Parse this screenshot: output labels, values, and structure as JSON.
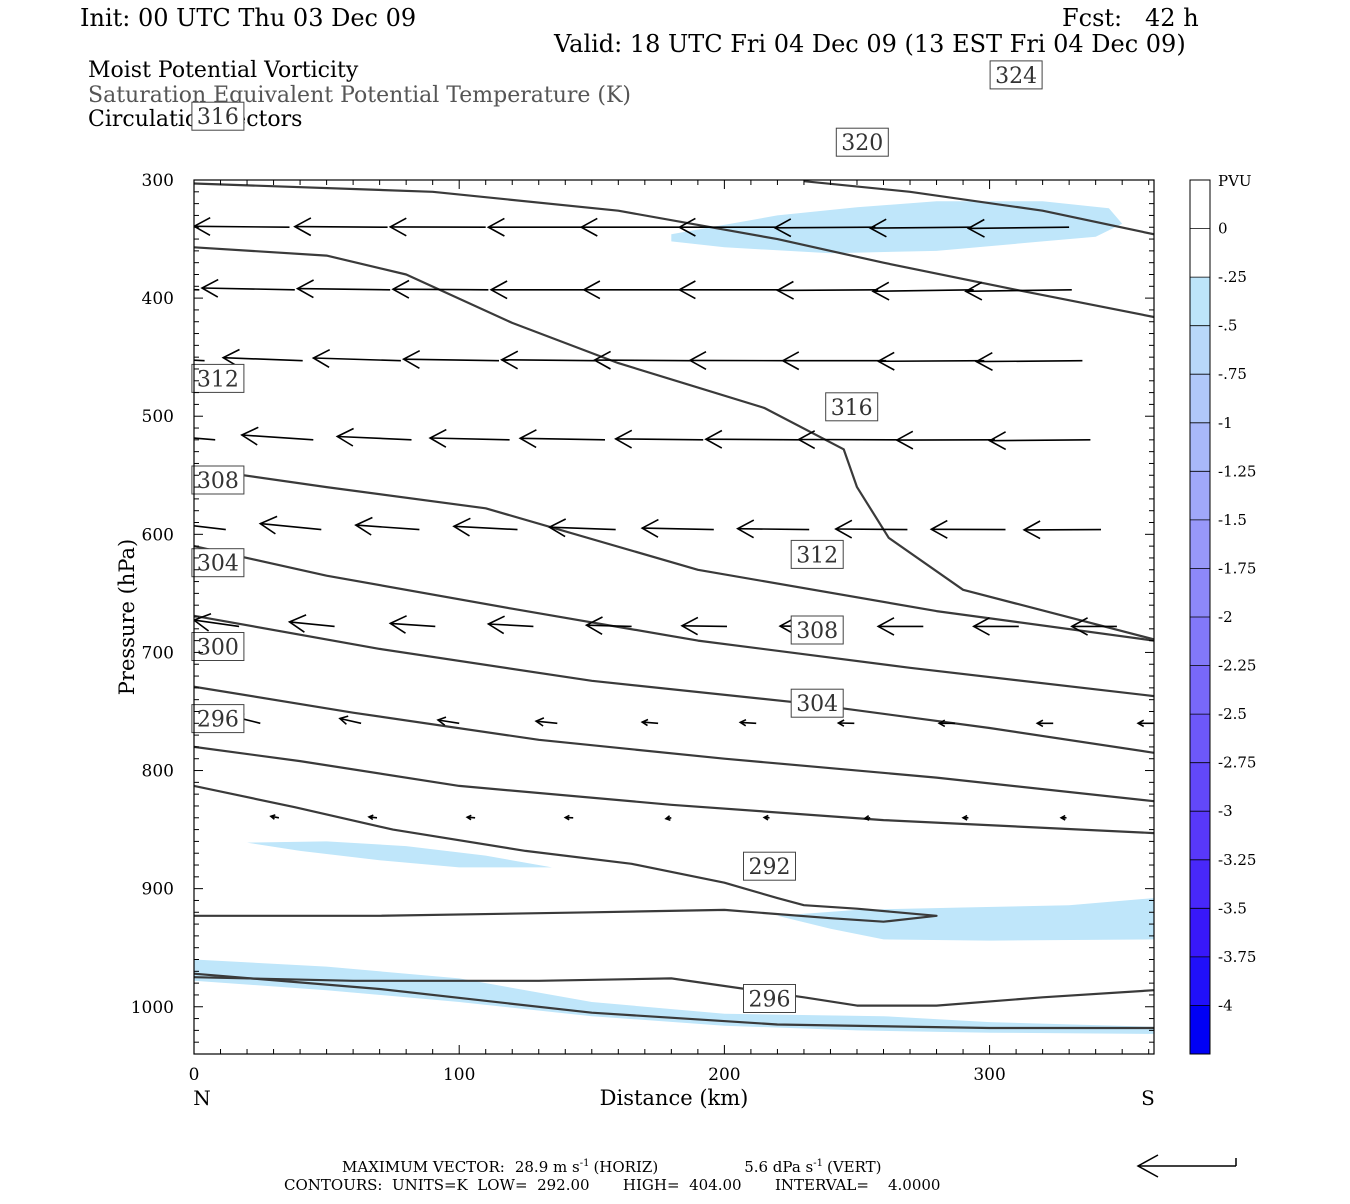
{
  "header": {
    "init": "Init: 00 UTC Thu 03 Dec 09",
    "fcst": "Fcst:   42 h",
    "valid": "Valid: 18 UTC Fri 04 Dec 09 (13 EST Fri 04 Dec 09)",
    "field_lines": [
      "Moist Potential Vorticity",
      "Saturation Equivalent Potential Temperature (K)",
      "Circulation Vectors"
    ]
  },
  "footer": {
    "max_vector_prefix": "MAXIMUM VECTOR:",
    "max_vector_horiz_value": "28.9 m s",
    "max_vector_horiz_label": "(HORIZ)",
    "max_vector_vert_value": "5.6 dPa s",
    "max_vector_vert_label": "(VERT)",
    "exponent": "-1",
    "contours": "CONTOURS:  UNITS=K  LOW=  292.00       HIGH=  404.00       INTERVAL=    4.0000"
  },
  "colors": {
    "contour": "#3a3a3a",
    "shade_light": "#bfe6fa",
    "vector": "#000000"
  },
  "chart_data": {
    "type": "cross-section",
    "xlabel": "Distance (km)",
    "ylabel": "Pressure (hPa)",
    "x_left_label": "N",
    "x_right_label": "S",
    "xlim": [
      0,
      362
    ],
    "ylim": [
      300,
      1040
    ],
    "x_ticks": [
      0,
      100,
      200,
      300
    ],
    "y_ticks": [
      300,
      400,
      500,
      600,
      700,
      800,
      900,
      1000
    ],
    "colorbar": {
      "title": "PVU",
      "labels": [
        "0",
        "-.25",
        "-.5",
        "-.75",
        "-1",
        "-1.25",
        "-1.5",
        "-1.75",
        "-2",
        "-2.25",
        "-2.5",
        "-2.75",
        "-3",
        "-3.25",
        "-3.5",
        "-3.75",
        "-4"
      ],
      "colors": [
        "#ffffff",
        "#ffffff",
        "#bde5fa",
        "#b8d8fa",
        "#b0c8fa",
        "#a8b8fa",
        "#a0a8fa",
        "#9898fa",
        "#8d88fa",
        "#8278fa",
        "#7868fa",
        "#6d58fa",
        "#6248fa",
        "#5838fa",
        "#4828fa",
        "#3818fa",
        "#2010fa",
        "#0000f5"
      ]
    },
    "theta_e_contours": [
      {
        "level": 296,
        "points": [
          [
            0,
            972
          ],
          [
            70,
            985
          ],
          [
            150,
            1005
          ],
          [
            220,
            1015
          ],
          [
            300,
            1018
          ],
          [
            362,
            1018
          ]
        ]
      },
      {
        "level": 296,
        "points": [
          [
            0,
            975
          ],
          [
            60,
            978
          ],
          [
            130,
            978
          ],
          [
            180,
            976
          ],
          [
            230,
            992
          ],
          [
            250,
            999
          ],
          [
            280,
            999
          ],
          [
            320,
            992
          ],
          [
            362,
            986
          ]
        ]
      },
      {
        "level": 292,
        "points": [
          [
            0,
            923
          ],
          [
            70,
            923
          ],
          [
            150,
            920
          ],
          [
            200,
            918
          ],
          [
            240,
            925
          ],
          [
            260,
            928
          ],
          [
            280,
            923
          ],
          [
            250,
            917
          ],
          [
            230,
            914
          ],
          [
            220,
            908
          ],
          [
            200,
            895
          ],
          [
            165,
            879
          ],
          [
            125,
            868
          ],
          [
            75,
            850
          ],
          [
            38,
            831
          ],
          [
            0,
            813
          ]
        ]
      },
      {
        "level": 296,
        "points": [
          [
            0,
            780
          ],
          [
            40,
            792
          ],
          [
            100,
            813
          ],
          [
            180,
            829
          ],
          [
            260,
            842
          ],
          [
            362,
            853
          ]
        ]
      },
      {
        "level": 300,
        "points": [
          [
            0,
            729
          ],
          [
            60,
            751
          ],
          [
            130,
            774
          ],
          [
            200,
            790
          ],
          [
            280,
            806
          ],
          [
            362,
            826
          ]
        ]
      },
      {
        "level": 304,
        "points": [
          [
            0,
            669
          ],
          [
            70,
            697
          ],
          [
            150,
            724
          ],
          [
            230,
            743
          ],
          [
            300,
            764
          ],
          [
            362,
            785
          ]
        ]
      },
      {
        "level": 308,
        "points": [
          [
            0,
            610
          ],
          [
            50,
            635
          ],
          [
            120,
            663
          ],
          [
            190,
            690
          ],
          [
            270,
            713
          ],
          [
            362,
            737
          ]
        ]
      },
      {
        "level": 312,
        "points": [
          [
            0,
            544
          ],
          [
            50,
            560
          ],
          [
            110,
            578
          ],
          [
            190,
            630
          ],
          [
            280,
            665
          ],
          [
            362,
            690
          ]
        ]
      },
      {
        "level": 316,
        "points": [
          [
            0,
            357
          ],
          [
            50,
            364
          ],
          [
            80,
            380
          ],
          [
            120,
            421
          ],
          [
            160,
            455
          ],
          [
            215,
            493
          ],
          [
            245,
            528
          ],
          [
            250,
            560
          ],
          [
            262,
            603
          ],
          [
            290,
            647
          ],
          [
            362,
            689
          ]
        ]
      },
      {
        "level": 320,
        "points": [
          [
            0,
            303
          ],
          [
            90,
            310
          ],
          [
            160,
            326
          ],
          [
            220,
            350
          ],
          [
            260,
            370
          ],
          [
            310,
            393
          ],
          [
            362,
            416
          ]
        ]
      },
      {
        "level": 324,
        "points": [
          [
            230,
            301
          ],
          [
            270,
            310
          ],
          [
            320,
            326
          ],
          [
            362,
            346
          ]
        ]
      }
    ],
    "pv_shading": [
      {
        "label": "-.25 to -.5",
        "points": [
          [
            180,
            346
          ],
          [
            220,
            330
          ],
          [
            250,
            323
          ],
          [
            280,
            318
          ],
          [
            320,
            318
          ],
          [
            345,
            324
          ],
          [
            350,
            337
          ],
          [
            340,
            348
          ],
          [
            320,
            352
          ],
          [
            280,
            360
          ],
          [
            240,
            362
          ],
          [
            200,
            357
          ],
          [
            180,
            352
          ]
        ]
      },
      {
        "label": "-.25 to -.5",
        "points": [
          [
            20,
            861
          ],
          [
            50,
            860
          ],
          [
            80,
            864
          ],
          [
            110,
            872
          ],
          [
            135,
            882
          ],
          [
            100,
            882
          ],
          [
            70,
            876
          ],
          [
            40,
            868
          ]
        ]
      },
      {
        "label": "-.25 to -.5",
        "points": [
          [
            220,
            923
          ],
          [
            250,
            918
          ],
          [
            290,
            916
          ],
          [
            330,
            914
          ],
          [
            362,
            908
          ],
          [
            362,
            943
          ],
          [
            300,
            944
          ],
          [
            260,
            943
          ],
          [
            240,
            934
          ]
        ]
      },
      {
        "label": "-.25 to -.5",
        "points": [
          [
            0,
            960
          ],
          [
            50,
            966
          ],
          [
            100,
            976
          ],
          [
            150,
            996
          ],
          [
            200,
            1006
          ],
          [
            260,
            1008
          ],
          [
            300,
            1013
          ],
          [
            362,
            1017
          ],
          [
            362,
            1023
          ],
          [
            300,
            1022
          ],
          [
            250,
            1020
          ],
          [
            200,
            1016
          ],
          [
            150,
            1008
          ],
          [
            100,
            996
          ],
          [
            50,
            986
          ],
          [
            0,
            978
          ]
        ]
      }
    ],
    "vector_rows": [
      {
        "pressure": 340,
        "x": [
          0,
          36,
          73,
          110,
          147,
          183,
          220,
          257,
          293,
          330
        ],
        "u": [
          -35,
          -36,
          -35,
          -36,
          -36,
          -37,
          -37,
          -38,
          -38,
          -38
        ],
        "w": [
          0,
          0.3,
          0.2,
          0.1,
          0,
          0,
          0,
          -0.2,
          -0.3,
          -0.4
        ]
      },
      {
        "pressure": 393,
        "x": [
          2,
          38,
          74,
          111,
          148,
          184,
          221,
          258,
          294,
          331
        ],
        "u": [
          -35,
          -35,
          -35,
          -36,
          -36,
          -37,
          -38,
          -38,
          -38,
          -40
        ],
        "w": [
          0.8,
          0.6,
          0.4,
          0.2,
          0,
          0,
          0,
          -0.2,
          -0.5,
          -0.5
        ]
      },
      {
        "pressure": 453,
        "x": [
          4,
          41,
          78,
          115,
          152,
          188,
          225,
          261,
          298,
          335
        ],
        "u": [
          -30,
          -30,
          -33,
          -36,
          -36,
          -37,
          -38,
          -39,
          -40,
          -40
        ],
        "w": [
          1.2,
          1,
          0.9,
          0.5,
          0.3,
          0.2,
          0.1,
          0,
          -0.2,
          -0.3
        ]
      },
      {
        "pressure": 520,
        "x": [
          8,
          45,
          82,
          119,
          155,
          192,
          229,
          265,
          302,
          338
        ],
        "u": [
          -28,
          -27,
          -28,
          -30,
          -32,
          -33,
          -36,
          -37,
          -37,
          -38
        ],
        "w": [
          2,
          1.6,
          1.1,
          0.6,
          0.5,
          0.3,
          0.2,
          0.1,
          -0.1,
          -0.3
        ]
      },
      {
        "pressure": 596,
        "x": [
          12,
          48,
          85,
          122,
          159,
          196,
          232,
          269,
          306,
          342
        ],
        "u": [
          -23,
          -23,
          -24,
          -24,
          -25,
          -27,
          -27,
          -27,
          -28,
          -29
        ],
        "w": [
          2.4,
          2,
          1.5,
          1.1,
          0.8,
          0.5,
          0.3,
          0.2,
          0.1,
          -0.1
        ]
      },
      {
        "pressure": 678,
        "x": [
          17,
          53,
          91,
          128,
          165,
          201,
          238,
          275,
          311,
          348
        ],
        "u": [
          -17,
          -17,
          -17,
          -17,
          -17,
          -17,
          -17,
          -17,
          -17,
          -17
        ],
        "w": [
          2.1,
          1.5,
          1,
          0.8,
          0.4,
          0.2,
          0.1,
          0,
          0,
          0
        ]
      },
      {
        "pressure": 760,
        "x": [
          25,
          63,
          100,
          137,
          175,
          212,
          249,
          287,
          324,
          362
        ],
        "u": [
          -10,
          -8,
          -8,
          -8,
          -6,
          -6,
          -6,
          -6,
          -6,
          -6
        ],
        "w": [
          2.2,
          1.6,
          1.1,
          0.7,
          0.4,
          0.3,
          0.1,
          0,
          0,
          0
        ]
      },
      {
        "pressure": 840,
        "x": [
          32,
          69,
          106,
          143,
          180,
          217,
          255,
          292,
          329
        ],
        "u": [
          -3,
          -3,
          -3,
          -3,
          -2,
          -2,
          -2,
          -2,
          -2
        ],
        "w": [
          0.5,
          0.3,
          0.2,
          0.1,
          -0.3,
          0.1,
          -0.2,
          0,
          0
        ]
      }
    ]
  }
}
